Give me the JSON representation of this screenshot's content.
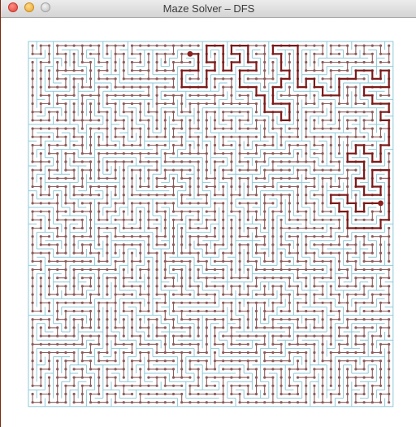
{
  "window": {
    "title": "Maze Solver – DFS",
    "buttons": {
      "close": "close-window",
      "minimize": "minimize-window",
      "zoom": "zoom-window"
    }
  },
  "maze": {
    "algorithm": "DFS",
    "columns": 44,
    "rows": 44,
    "colors": {
      "walls": "#8ec9d8",
      "explored_path": "#8a5a5a",
      "explored_nodes": "#8a5a5a",
      "solution_path": "#7b1a1a",
      "start_end_markers": "#8b1f1f"
    },
    "start_cell": [
      19,
      1
    ],
    "goal_cell": [
      42,
      19
    ]
  }
}
